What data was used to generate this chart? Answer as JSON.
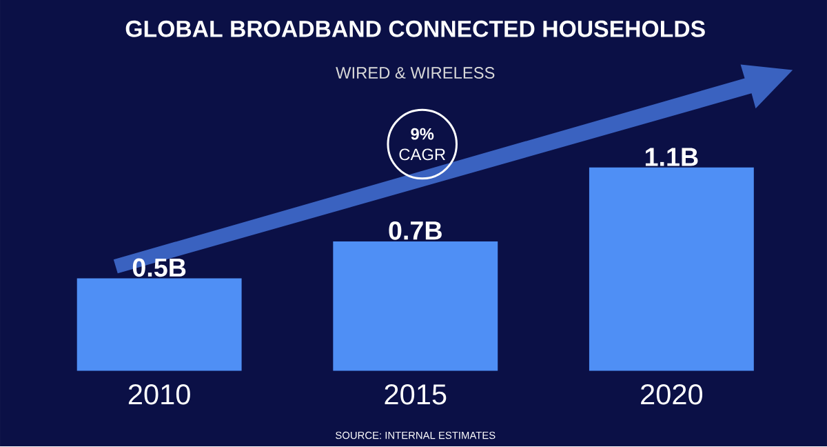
{
  "chart_data": {
    "type": "bar",
    "title": "GLOBAL BROADBAND CONNECTED HOUSEHOLDS",
    "subtitle": "WIRED & WIRELESS",
    "categories": [
      "2010",
      "2015",
      "2020"
    ],
    "values": [
      0.5,
      0.7,
      1.1
    ],
    "value_labels": [
      "0.5B",
      "0.7B",
      "1.1B"
    ],
    "color": "#4f8ff5",
    "annotations": [
      "**9%** CAGR",
      "SOURCE: INTERNAL ESTIMATES"
    ]
  }
}
